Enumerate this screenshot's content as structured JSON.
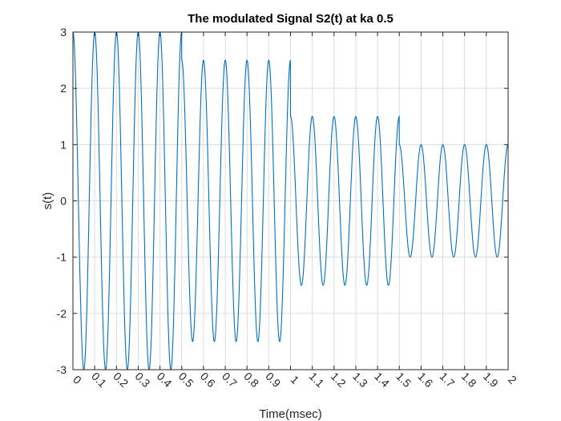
{
  "chart_data": {
    "type": "line",
    "title": "The modulated Signal S2(t) at ka 0.5",
    "xlabel": "Time(msec)",
    "ylabel": "s(t)",
    "xlim": [
      0,
      2
    ],
    "ylim": [
      -3,
      3
    ],
    "grid": true,
    "x_ticks": [
      "0",
      "0.1",
      "0.2",
      "0.3",
      "0.4",
      "0.5",
      "0.6",
      "0.7",
      "0.8",
      "0.9",
      "1",
      "1.1",
      "1.2",
      "1.3",
      "1.4",
      "1.5",
      "1.6",
      "1.7",
      "1.8",
      "1.9",
      "2"
    ],
    "y_ticks": [
      "-3",
      "-2",
      "-1",
      "0",
      "1",
      "2",
      "3"
    ],
    "carrier_frequency_khz": 10,
    "series": [
      {
        "color": "#0072BD",
        "segments": [
          {
            "x_start": 0.0,
            "x_end": 0.5,
            "amplitude": 3.0
          },
          {
            "x_start": 0.5,
            "x_end": 1.0,
            "amplitude": 2.5
          },
          {
            "x_start": 1.0,
            "x_end": 1.5,
            "amplitude": 1.5
          },
          {
            "x_start": 1.5,
            "x_end": 2.0,
            "amplitude": 1.0
          }
        ]
      }
    ]
  }
}
